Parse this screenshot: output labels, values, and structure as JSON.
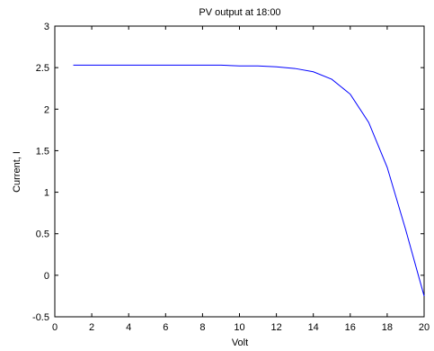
{
  "chart_data": {
    "type": "line",
    "title": "PV output at 18:00",
    "xlabel": "Volt",
    "ylabel": "Current, I",
    "xlim": [
      0,
      20
    ],
    "ylim": [
      -0.5,
      3
    ],
    "xticks": [
      0,
      2,
      4,
      6,
      8,
      10,
      12,
      14,
      16,
      18,
      20
    ],
    "yticks": [
      -0.5,
      0,
      0.5,
      1,
      1.5,
      2,
      2.5,
      3
    ],
    "grid": false,
    "line_color": "#0000ff",
    "series": [
      {
        "x": [
          1,
          2,
          3,
          4,
          5,
          6,
          7,
          8,
          9,
          10,
          11,
          12,
          13,
          14,
          15,
          16,
          17,
          18,
          19,
          20
        ],
        "y": [
          2.53,
          2.53,
          2.53,
          2.53,
          2.53,
          2.53,
          2.53,
          2.53,
          2.53,
          2.52,
          2.52,
          2.51,
          2.49,
          2.45,
          2.36,
          2.18,
          1.84,
          1.3,
          0.55,
          -0.25
        ]
      }
    ]
  }
}
